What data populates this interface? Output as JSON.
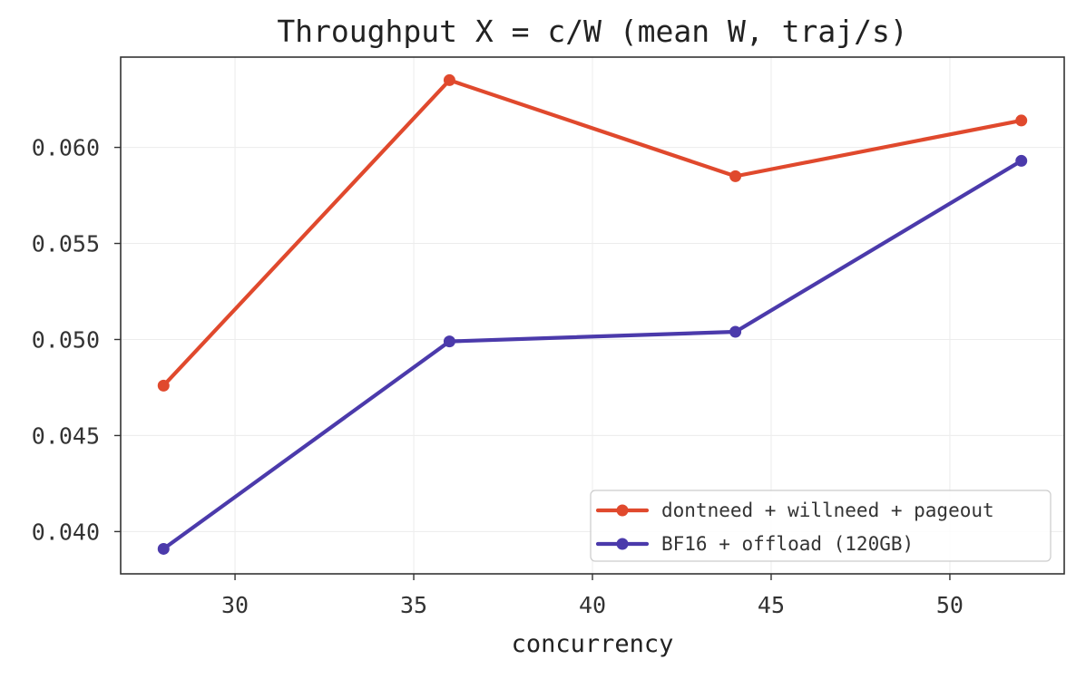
{
  "chart_data": {
    "type": "line",
    "title": "Throughput X = c/W (mean W, traj/s)",
    "xlabel": "concurrency",
    "ylabel": "",
    "x": [
      28,
      36,
      44,
      52
    ],
    "xlim": [
      26.8,
      53.2
    ],
    "ylim": [
      0.0378,
      0.0647
    ],
    "xticks": [
      30,
      35,
      40,
      45,
      50
    ],
    "xtick_labels": [
      "30",
      "35",
      "40",
      "45",
      "50"
    ],
    "yticks": [
      0.04,
      0.045,
      0.05,
      0.055,
      0.06
    ],
    "ytick_labels": [
      "0.040",
      "0.045",
      "0.050",
      "0.055",
      "0.060"
    ],
    "grid": true,
    "legend_position": "bottom-right",
    "series": [
      {
        "name": "dontneed + willneed + pageout",
        "values": [
          0.0476,
          0.0635,
          0.0585,
          0.0614
        ],
        "color": "#e0492d"
      },
      {
        "name": "BF16 + offload (120GB)",
        "values": [
          0.0391,
          0.0499,
          0.0504,
          0.0593
        ],
        "color": "#4b3aab"
      }
    ]
  }
}
